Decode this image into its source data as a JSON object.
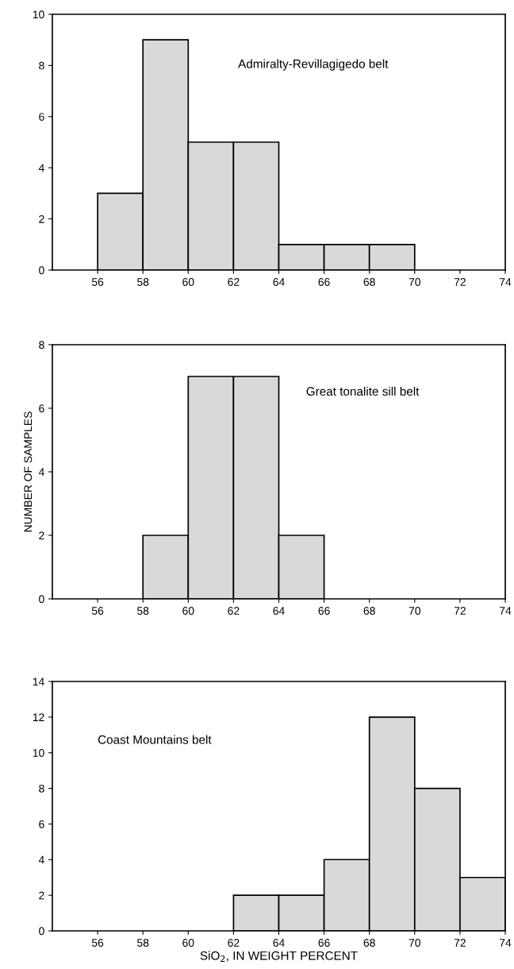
{
  "chart_data": [
    {
      "type": "histogram",
      "bins": [
        56,
        58,
        60,
        62,
        64,
        66,
        68,
        70
      ],
      "values": [
        3,
        9,
        5,
        5,
        1,
        1,
        1
      ],
      "color": "#d9d9d9",
      "xlim": [
        54,
        74
      ],
      "ylim": [
        0,
        10
      ],
      "xticks": [
        56,
        58,
        60,
        62,
        64,
        66,
        68,
        70,
        72,
        74
      ],
      "yticks": [
        0,
        2,
        4,
        6,
        8,
        10
      ],
      "annotations": [
        "Admiralty-Revillagigedo belt"
      ]
    },
    {
      "type": "histogram",
      "bins": [
        58,
        60,
        62,
        64,
        66
      ],
      "values": [
        2,
        7,
        7,
        2
      ],
      "color": "#d9d9d9",
      "xlim": [
        54,
        74
      ],
      "ylim": [
        0,
        8
      ],
      "xticks": [
        56,
        58,
        60,
        62,
        64,
        66,
        68,
        70,
        72,
        74
      ],
      "yticks": [
        0,
        2,
        4,
        6,
        8
      ],
      "ylabel": "NUMBER OF SAMPLES",
      "annotations": [
        "Great tonalite sill belt"
      ]
    },
    {
      "type": "histogram",
      "bins": [
        62,
        64,
        66,
        68,
        70,
        72,
        74
      ],
      "values": [
        2,
        2,
        4,
        12,
        8,
        3
      ],
      "color": "#d9d9d9",
      "xlim": [
        54,
        74
      ],
      "ylim": [
        0,
        14
      ],
      "xticks": [
        56,
        58,
        60,
        62,
        64,
        66,
        68,
        70,
        72,
        74
      ],
      "yticks": [
        0,
        2,
        4,
        6,
        8,
        10,
        12,
        14
      ],
      "xlabel": "SiO$_{2}$, IN WEIGHT PERCENT",
      "annotations": [
        "Coast Mountains belt"
      ]
    }
  ]
}
